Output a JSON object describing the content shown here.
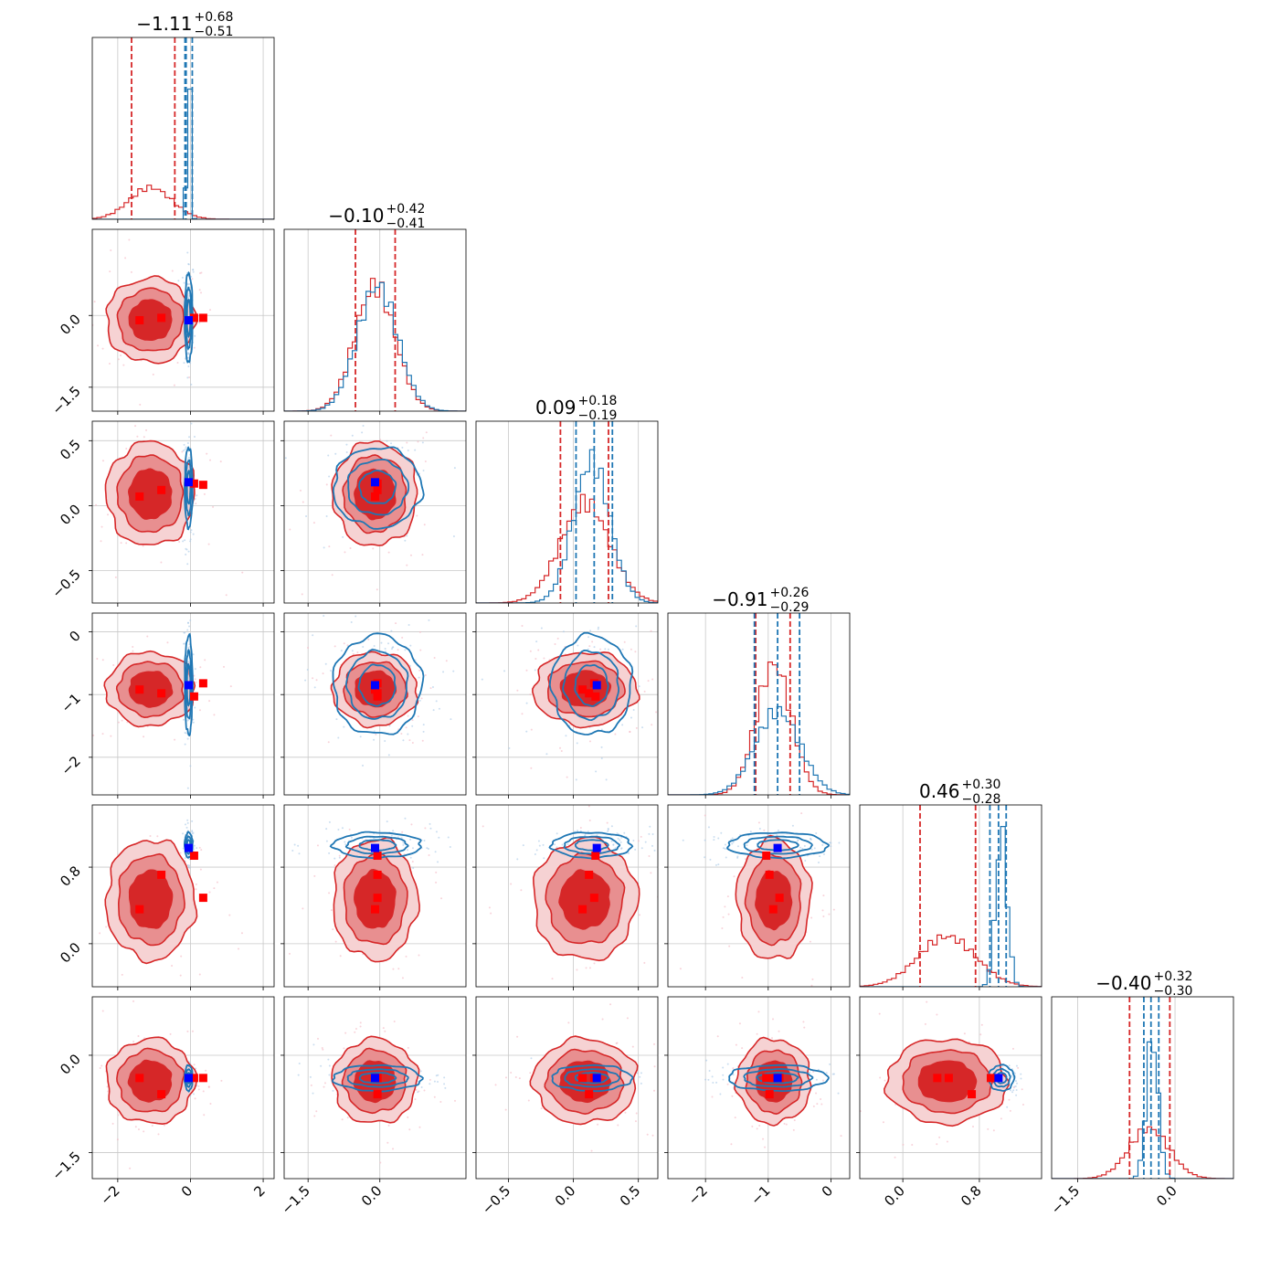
{
  "chart_data": {
    "type": "corner",
    "grid": true,
    "colors": {
      "red": "#d62728",
      "red_mid": "#e88f90",
      "red_light": "#f6d2d3",
      "blue": "#1f77b4",
      "marker_red": "#ff0000",
      "marker_blue": "#0000ff"
    },
    "parameters": [
      {
        "title": "−1.11",
        "plus": "+0.68",
        "minus": "−0.51",
        "range": [
          -2.7,
          2.3
        ],
        "ticks": [
          -2,
          0,
          2
        ],
        "tick_labels": [
          "−2",
          "0",
          "2"
        ],
        "red_hist": {
          "mean": -1.1,
          "sd": 0.58,
          "amp": 0.19
        },
        "blue_hist": {
          "mean": -0.05,
          "sd": 0.05,
          "amp": 0.95
        },
        "red_quantiles": [
          -1.62,
          -0.43
        ],
        "blue_quantiles": [
          -0.15,
          -0.12,
          0.05
        ]
      },
      {
        "title": "−0.10",
        "plus": "+0.42",
        "minus": "−0.41",
        "range": [
          -2.0,
          1.8
        ],
        "ticks": [
          -1.5,
          0.0
        ],
        "tick_labels": [
          "−1.5",
          "0.0"
        ],
        "red_hist": {
          "mean": -0.1,
          "sd": 0.42,
          "amp": 0.75
        },
        "blue_hist": {
          "mean": -0.05,
          "sd": 0.42,
          "amp": 0.75
        },
        "red_quantiles": [
          -0.51,
          0.32
        ],
        "blue_quantiles": []
      },
      {
        "title": "0.09",
        "plus": "+0.18",
        "minus": "−0.19",
        "range": [
          -0.75,
          0.65
        ],
        "ticks": [
          -0.5,
          0.0,
          0.5
        ],
        "tick_labels": [
          "−0.5",
          "0.0",
          "0.5"
        ],
        "red_hist": {
          "mean": 0.09,
          "sd": 0.19,
          "amp": 0.6
        },
        "blue_hist": {
          "mean": 0.14,
          "sd": 0.14,
          "amp": 0.85
        },
        "red_quantiles": [
          -0.1,
          0.27
        ],
        "blue_quantiles": [
          0.02,
          0.16,
          0.3
        ]
      },
      {
        "title": "−0.91",
        "plus": "+0.26",
        "minus": "−0.29",
        "range": [
          -2.6,
          0.3
        ],
        "ticks": [
          -2,
          -1,
          0
        ],
        "tick_labels": [
          "−2",
          "−1",
          "0"
        ],
        "red_hist": {
          "mean": -0.91,
          "sd": 0.28,
          "amp": 0.78
        },
        "blue_hist": {
          "mean": -0.85,
          "sd": 0.36,
          "amp": 0.5
        },
        "red_quantiles": [
          -1.2,
          -0.65
        ],
        "blue_quantiles": [
          -1.22,
          -0.85,
          -0.5
        ]
      },
      {
        "title": "0.46",
        "plus": "+0.30",
        "minus": "−0.28",
        "range": [
          -0.45,
          1.45
        ],
        "ticks": [
          0.0,
          0.8
        ],
        "tick_labels": [
          "0.0",
          "0.8"
        ],
        "red_hist": {
          "mean": 0.46,
          "sd": 0.3,
          "amp": 0.3
        },
        "blue_hist": {
          "mean": 1.03,
          "sd": 0.06,
          "amp": 0.92
        },
        "red_quantiles": [
          0.18,
          0.76
        ],
        "blue_quantiles": [
          0.91,
          1.0,
          1.08
        ]
      },
      {
        "title": "−0.40",
        "plus": "+0.32",
        "minus": "−0.30",
        "range": [
          -1.9,
          0.9
        ],
        "ticks": [
          -1.5,
          0.0
        ],
        "tick_labels": [
          "−1.5",
          "0.0"
        ],
        "red_hist": {
          "mean": -0.4,
          "sd": 0.31,
          "amp": 0.3
        },
        "blue_hist": {
          "mean": -0.35,
          "sd": 0.09,
          "amp": 0.85
        },
        "red_quantiles": [
          -0.7,
          -0.08
        ],
        "blue_quantiles": [
          -0.48,
          -0.37,
          -0.25
        ]
      }
    ],
    "truth_markers": {
      "blue": [
        -0.05,
        -0.1,
        0.18,
        -0.85,
        1.0,
        -0.35
      ],
      "red": [
        [
          -1.4,
          -0.1,
          0.07,
          -0.92,
          0.36,
          -0.35
        ],
        [
          -0.8,
          -0.05,
          0.12,
          -0.98,
          0.72,
          -0.6
        ],
        [
          0.1,
          -0.05,
          0.17,
          -1.03,
          0.92,
          -0.35
        ],
        [
          0.35,
          -0.05,
          0.16,
          -0.82,
          0.48,
          -0.35
        ]
      ]
    }
  }
}
